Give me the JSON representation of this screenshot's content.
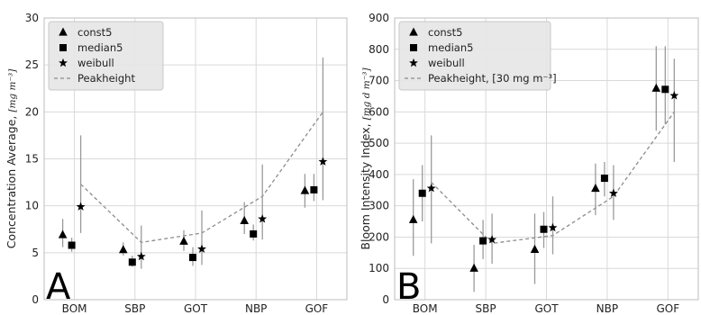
{
  "chart_data": [
    {
      "type": "scatter",
      "panel_label": "A",
      "categories": [
        "BOM",
        "SBP",
        "GOT",
        "NBP",
        "GOF"
      ],
      "ylabel_main": "Concentration Average,",
      "ylabel_unit": "[mg m⁻³]",
      "ylim": [
        0,
        30
      ],
      "yticks": [
        "0",
        "5",
        "10",
        "15",
        "20",
        "25",
        "30"
      ],
      "ytick_values": [
        0,
        5,
        10,
        15,
        20,
        25,
        30
      ],
      "grid": true,
      "legend_position": "top-left",
      "series": [
        {
          "name": "const5",
          "marker": "triangle",
          "values": [
            6.9,
            5.3,
            6.2,
            8.4,
            11.6
          ],
          "err_low": [
            5.6,
            4.7,
            5.2,
            7.0,
            9.8
          ],
          "err_high": [
            8.6,
            6.1,
            7.4,
            10.4,
            13.4
          ]
        },
        {
          "name": "median5",
          "marker": "square",
          "values": [
            5.8,
            4.0,
            4.5,
            7.0,
            11.7
          ],
          "err_low": [
            5.1,
            3.5,
            3.6,
            6.3,
            10.5
          ],
          "err_high": [
            6.6,
            4.7,
            5.6,
            8.0,
            13.4
          ]
        },
        {
          "name": "weibull",
          "marker": "star",
          "values": [
            9.9,
            4.6,
            5.4,
            8.6,
            14.7
          ],
          "err_low": [
            7.1,
            3.3,
            3.7,
            6.4,
            10.6
          ],
          "err_high": [
            17.5,
            7.9,
            9.5,
            14.4,
            25.8
          ]
        },
        {
          "name": "Peakheight",
          "marker": "dashed-line",
          "values": [
            12.3,
            6.1,
            7.1,
            11.0,
            20.0
          ]
        }
      ]
    },
    {
      "type": "scatter",
      "panel_label": "B",
      "categories": [
        "BOM",
        "SBP",
        "GOT",
        "NBP",
        "GOF"
      ],
      "ylabel_main": "Bloom Intensity Index,",
      "ylabel_unit": "[mg d m⁻³]",
      "ylim": [
        0,
        900
      ],
      "yticks": [
        "0",
        "100",
        "200",
        "300",
        "400",
        "500",
        "600",
        "700",
        "800",
        "900"
      ],
      "ytick_values": [
        0,
        100,
        200,
        300,
        400,
        500,
        600,
        700,
        800,
        900
      ],
      "grid": true,
      "legend_position": "top-left",
      "series": [
        {
          "name": "const5",
          "marker": "triangle",
          "values": [
            255,
            100,
            160,
            355,
            675
          ],
          "err_low": [
            140,
            25,
            50,
            270,
            540
          ],
          "err_high": [
            385,
            175,
            275,
            435,
            810
          ]
        },
        {
          "name": "median5",
          "marker": "square",
          "values": [
            340,
            188,
            225,
            388,
            672
          ],
          "err_low": [
            250,
            130,
            165,
            330,
            560
          ],
          "err_high": [
            430,
            255,
            280,
            440,
            810
          ]
        },
        {
          "name": "weibull",
          "marker": "star",
          "values": [
            356,
            192,
            230,
            340,
            652
          ],
          "err_low": [
            180,
            115,
            145,
            255,
            440
          ],
          "err_high": [
            525,
            275,
            330,
            430,
            770
          ]
        },
        {
          "name": "Peakheight, [30 mg m⁻³]",
          "marker": "dashed-line",
          "values": [
            375,
            180,
            205,
            330,
            600
          ]
        }
      ]
    }
  ]
}
